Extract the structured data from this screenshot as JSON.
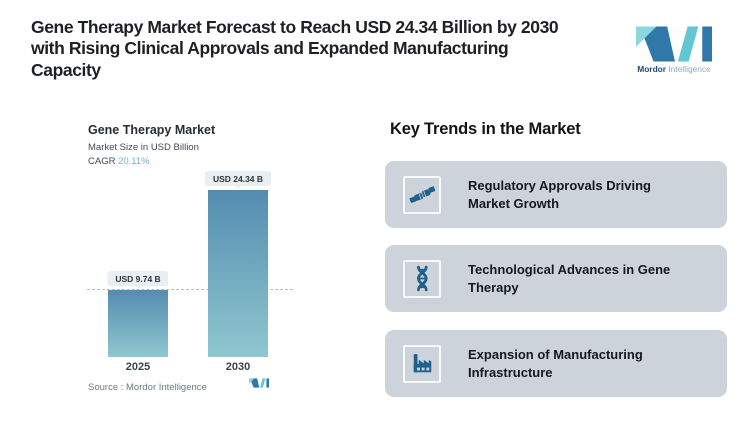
{
  "header": {
    "title_lines": [
      "Gene Therapy Market Forecast to Reach USD 24.34 Billion by 2030",
      "with Rising Clinical Approvals and Expanded Manufacturing",
      "Capacity"
    ]
  },
  "brand": {
    "name": "Mordor Intelligence",
    "name_primary": "Mordor",
    "name_secondary": "Intelligence"
  },
  "chart_data": {
    "type": "bar",
    "title": "Gene Therapy Market",
    "subtitle": "Market Size in USD Billion",
    "cagr_label": "CAGR",
    "cagr_value": "20.11%",
    "categories": [
      "2025",
      "2030"
    ],
    "values": [
      9.74,
      24.34
    ],
    "bar_labels": [
      "USD 9.74 B",
      "USD 24.34 B"
    ],
    "ylabel": "Market Size in USD Billion",
    "ylim": [
      0,
      24.34
    ],
    "grid": "off",
    "legend": "none",
    "reference_line": {
      "value": 9.74,
      "style": "dashed"
    },
    "source": "Source :  Mordor Intelligence"
  },
  "trends": {
    "heading": "Key Trends in the Market",
    "cards": [
      {
        "icon": "handshake-icon",
        "title_lines": [
          "Regulatory Approvals Driving",
          "Market Growth"
        ]
      },
      {
        "icon": "dna-icon",
        "title_lines": [
          "Technological Advances in Gene",
          "Therapy"
        ]
      },
      {
        "icon": "factory-icon",
        "title_lines": [
          "Expansion of Manufacturing",
          "Infrastructure"
        ]
      }
    ]
  },
  "theme": {
    "accent_teal": "#6fb3ce",
    "bar_gradient_top": "#548cb1",
    "bar_gradient_bottom": "#8fc7cf",
    "card_bg": "#ccd3da",
    "icon_blue": "#1f608d",
    "pill_bg": "#e8eef2",
    "dash_color": "#b7bdc3",
    "logo_dark_blue": "#3077aa",
    "logo_teal": "#62c7d3",
    "logo_teal_light": "#8bd7dd"
  }
}
